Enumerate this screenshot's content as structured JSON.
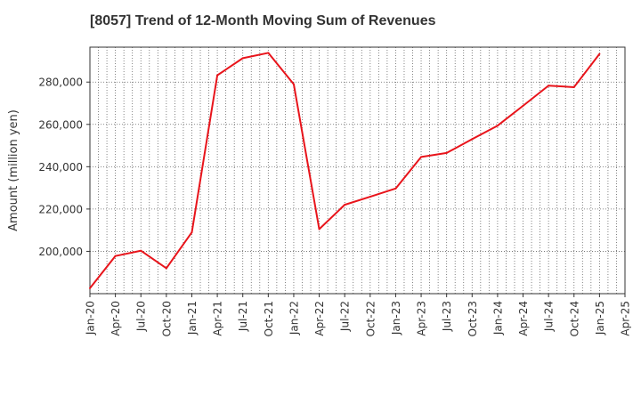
{
  "chart_data": {
    "type": "line",
    "title": "[8057]  Trend of 12-Month Moving Sum of Revenues",
    "ylabel": "Amount (million yen)",
    "xlabel": "",
    "ylim": [
      180000,
      296500
    ],
    "yticks": [
      200000,
      220000,
      240000,
      260000,
      280000
    ],
    "ytick_labels": [
      "200,000",
      "220,000",
      "240,000",
      "260,000",
      "280,000"
    ],
    "x_tick_labels": [
      "Jan-20",
      "Apr-20",
      "Jul-20",
      "Oct-20",
      "Jan-21",
      "Apr-21",
      "Jul-21",
      "Oct-21",
      "Jan-22",
      "Apr-22",
      "Jul-22",
      "Oct-22",
      "Jan-23",
      "Apr-23",
      "Jul-23",
      "Oct-23",
      "Jan-24",
      "Apr-24",
      "Jul-24",
      "Oct-24",
      "Jan-25",
      "Apr-25"
    ],
    "grid": true,
    "line_color": "#e8141b",
    "series": [
      {
        "values": [
          182600,
          197800,
          200300,
          192000,
          209000,
          283200,
          291300,
          293800,
          279000,
          210500,
          222000,
          225800,
          229700,
          244600,
          246500,
          253000,
          259400,
          268800,
          278300,
          277600,
          293300
        ]
      }
    ]
  }
}
